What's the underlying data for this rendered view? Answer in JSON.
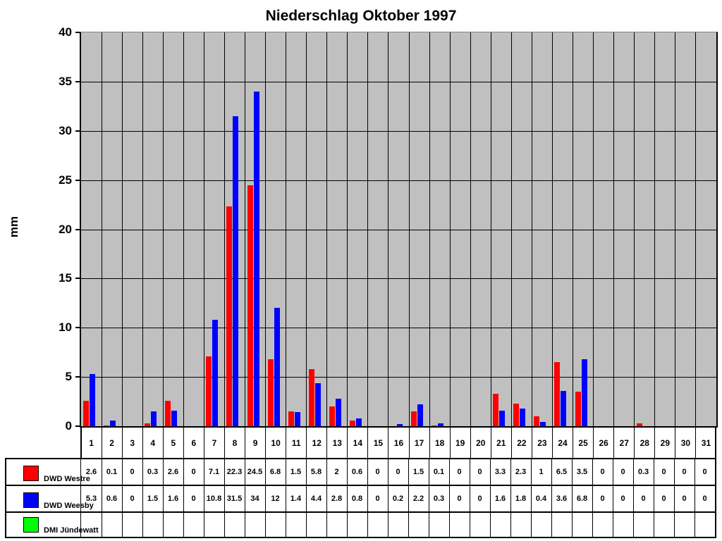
{
  "chart_data": {
    "type": "bar",
    "title": "Niederschlag Oktober 1997",
    "ylabel": "mm",
    "ylim": [
      0,
      40
    ],
    "ytick_step": 5,
    "grid": true,
    "plot_background": "#c0c0c0",
    "gridline_color": "#000000",
    "legend_position": "table-left",
    "categories": [
      1,
      2,
      3,
      4,
      5,
      6,
      7,
      8,
      9,
      10,
      11,
      12,
      13,
      14,
      15,
      16,
      17,
      18,
      19,
      20,
      21,
      22,
      23,
      24,
      25,
      26,
      27,
      28,
      29,
      30,
      31
    ],
    "series": [
      {
        "name": "DWD Westre",
        "color": "#ff0000",
        "values": [
          2.6,
          0.1,
          0,
          0.3,
          2.6,
          0,
          7.1,
          22.3,
          24.5,
          6.8,
          1.5,
          5.8,
          2,
          0.6,
          0,
          0,
          1.5,
          0.1,
          0,
          0,
          3.3,
          2.3,
          1,
          6.5,
          3.5,
          0,
          0,
          0.3,
          0,
          0,
          0
        ]
      },
      {
        "name": "DWD Weesby",
        "color": "#0000ff",
        "values": [
          5.3,
          0.6,
          0,
          1.5,
          1.6,
          0,
          10.8,
          31.5,
          34,
          12,
          1.4,
          4.4,
          2.8,
          0.8,
          0,
          0.2,
          2.2,
          0.3,
          0,
          0,
          1.6,
          1.8,
          0.4,
          3.6,
          6.8,
          0,
          0,
          0,
          0,
          0,
          0
        ]
      },
      {
        "name": "DMI Jündewatt",
        "color": "#00ff00",
        "values": []
      }
    ]
  }
}
